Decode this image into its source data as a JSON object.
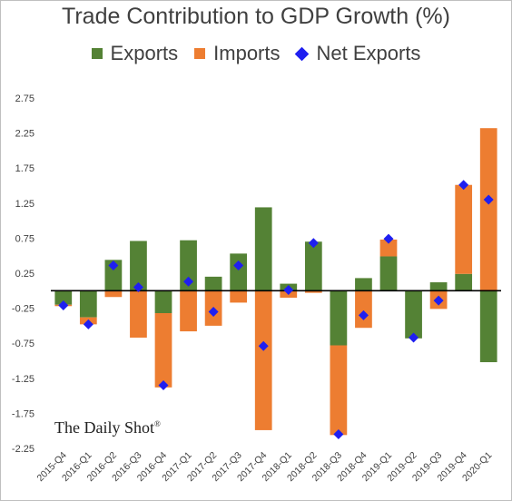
{
  "chart_data": {
    "type": "bar",
    "title": "Trade Contribution to GDP Growth (%)",
    "categories": [
      "2015-Q4",
      "2016-Q1",
      "2016-Q2",
      "2016-Q3",
      "2016-Q4",
      "2017-Q1",
      "2017-Q2",
      "2017-Q3",
      "2017-Q4",
      "2018-Q1",
      "2018-Q2",
      "2018-Q3",
      "2018-Q4",
      "2019-Q1",
      "2019-Q2",
      "2019-Q3",
      "2019-Q4",
      "2020-Q1"
    ],
    "series": [
      {
        "name": "Exports",
        "kind": "bar",
        "color": "#548235",
        "values": [
          -0.2,
          -0.38,
          0.44,
          0.71,
          -0.32,
          0.72,
          0.2,
          0.53,
          1.19,
          0.1,
          0.7,
          -0.78,
          0.18,
          0.49,
          -0.68,
          0.12,
          0.24,
          -1.02
        ]
      },
      {
        "name": "Imports",
        "kind": "bar",
        "color": "#ED7D31",
        "values": [
          -0.02,
          -0.1,
          -0.09,
          -0.67,
          -1.06,
          -0.58,
          -0.5,
          -0.17,
          -1.99,
          -0.1,
          -0.03,
          -1.28,
          -0.53,
          0.24,
          0.0,
          -0.26,
          1.27,
          2.32
        ]
      },
      {
        "name": "Net Exports",
        "kind": "marker",
        "color": "#1F1FF0",
        "values": [
          -0.21,
          -0.48,
          0.36,
          0.05,
          -1.35,
          0.13,
          -0.3,
          0.36,
          -0.79,
          0.01,
          0.68,
          -2.05,
          -0.35,
          0.74,
          -0.67,
          -0.14,
          1.51,
          1.3
        ]
      }
    ],
    "yticks": [
      2.75,
      2.25,
      1.75,
      1.25,
      0.75,
      0.25,
      -0.25,
      -0.75,
      -1.25,
      -1.75,
      -2.25
    ],
    "ytick_labels": [
      "2.75",
      "2.25",
      "1.75",
      "1.25",
      "0.75",
      "0.25",
      "-0.25",
      "-0.75",
      "-1.25",
      "-1.75",
      "-2.25"
    ],
    "ylim": [
      -2.25,
      2.75
    ],
    "grid": false,
    "legend_position": "top"
  },
  "watermark": {
    "text": "The Daily Shot",
    "mark": "®"
  }
}
